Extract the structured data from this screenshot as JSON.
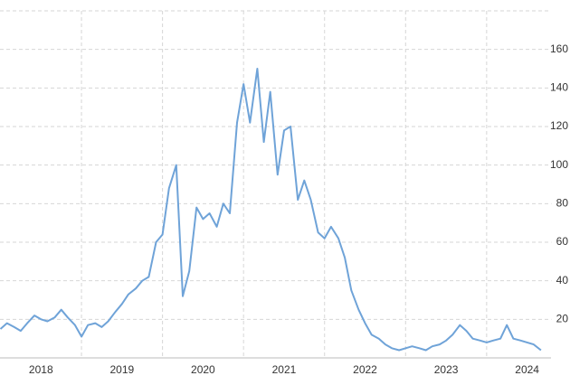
{
  "chart_data": {
    "type": "line",
    "x": [
      2018,
      2018.08,
      2018.17,
      2018.25,
      2018.33,
      2018.42,
      2018.5,
      2018.58,
      2018.67,
      2018.75,
      2018.83,
      2018.92,
      2019,
      2019.08,
      2019.17,
      2019.25,
      2019.33,
      2019.42,
      2019.5,
      2019.58,
      2019.67,
      2019.75,
      2019.83,
      2019.92,
      2020,
      2020.08,
      2020.17,
      2020.25,
      2020.33,
      2020.42,
      2020.5,
      2020.58,
      2020.67,
      2020.75,
      2020.83,
      2020.92,
      2021,
      2021.08,
      2021.17,
      2021.25,
      2021.33,
      2021.42,
      2021.5,
      2021.58,
      2021.67,
      2021.75,
      2021.83,
      2021.92,
      2022,
      2022.08,
      2022.17,
      2022.25,
      2022.33,
      2022.42,
      2022.5,
      2022.58,
      2022.67,
      2022.75,
      2022.83,
      2022.92,
      2023,
      2023.08,
      2023.17,
      2023.25,
      2023.33,
      2023.42,
      2023.5,
      2023.58,
      2023.67,
      2023.75,
      2023.83,
      2023.92,
      2024,
      2024.08,
      2024.17,
      2024.25,
      2024.33,
      2024.42,
      2024.5,
      2024.58,
      2024.67
    ],
    "series": [
      {
        "color": "#6fa3d8",
        "values": [
          15,
          18,
          16,
          14,
          18,
          22,
          20,
          19,
          21,
          25,
          21,
          17,
          11,
          17,
          18,
          16,
          19,
          24,
          28,
          33,
          36,
          40,
          42,
          60,
          64,
          88,
          100,
          32,
          45,
          78,
          72,
          75,
          68,
          80,
          75,
          122,
          142,
          122,
          150,
          112,
          138,
          95,
          118,
          120,
          82,
          92,
          82,
          65,
          62,
          68,
          62,
          52,
          35,
          25,
          18,
          12,
          10,
          7,
          5,
          4,
          5,
          6,
          5,
          4,
          6,
          7,
          9,
          12,
          17,
          14,
          10,
          9,
          8,
          9,
          10,
          17,
          10,
          9,
          8,
          7,
          4
        ]
      }
    ],
    "xlim": [
      2018,
      2024.8
    ],
    "xticks": [
      2018,
      2019,
      2020,
      2021,
      2022,
      2023,
      2024
    ],
    "ylim": [
      0,
      180
    ],
    "yticks": [
      20,
      40,
      60,
      80,
      100,
      120,
      140,
      160
    ],
    "grid": true
  }
}
